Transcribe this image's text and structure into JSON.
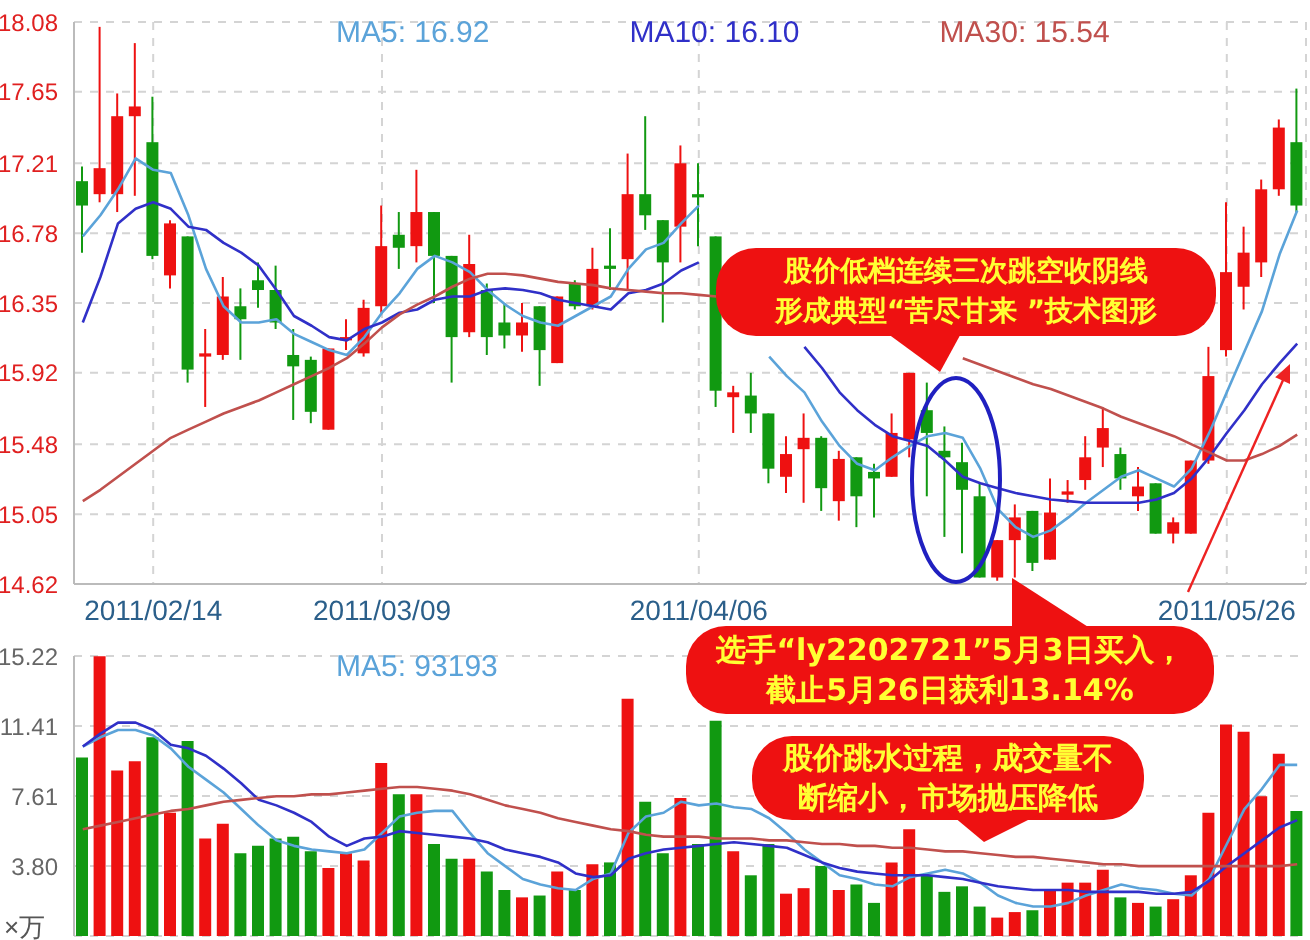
{
  "chart_data": [
    {
      "type": "candlestick",
      "categories": [
        null,
        null,
        null,
        null,
        "2011/02/14",
        null,
        null,
        null,
        null,
        null,
        null,
        null,
        null,
        null,
        null,
        null,
        null,
        "2011/03/09",
        null,
        null,
        null,
        null,
        null,
        null,
        null,
        null,
        null,
        null,
        null,
        null,
        null,
        null,
        null,
        null,
        null,
        "2011/04/06",
        null,
        null,
        null,
        null,
        null,
        null,
        null,
        null,
        null,
        null,
        null,
        null,
        null,
        null,
        null,
        null,
        null,
        null,
        null,
        null,
        null,
        null,
        null,
        null,
        null,
        null,
        null,
        null,
        null,
        "2011/05/26",
        null,
        null,
        null,
        null
      ],
      "ohlc": [
        [
          17.1,
          17.19,
          16.66,
          16.95
        ],
        [
          17.02,
          18.05,
          16.97,
          17.18
        ],
        [
          17.02,
          17.64,
          16.91,
          17.5
        ],
        [
          17.5,
          17.95,
          17.01,
          17.56
        ],
        [
          17.34,
          17.62,
          16.62,
          16.64
        ],
        [
          16.52,
          16.86,
          16.44,
          16.84
        ],
        [
          16.76,
          16.76,
          15.86,
          15.94
        ],
        [
          16.02,
          16.19,
          15.71,
          16.04
        ],
        [
          16.03,
          16.51,
          16.0,
          16.39
        ],
        [
          16.33,
          16.44,
          16.0,
          16.25
        ],
        [
          16.49,
          16.6,
          16.32,
          16.43
        ],
        [
          16.43,
          16.58,
          16.19,
          16.23
        ],
        [
          16.03,
          16.19,
          15.63,
          15.96
        ],
        [
          16.0,
          16.02,
          15.61,
          15.68
        ],
        [
          15.57,
          16.07,
          15.57,
          16.07
        ],
        [
          16.12,
          16.25,
          16.06,
          16.14
        ],
        [
          16.04,
          16.37,
          16.02,
          16.32
        ],
        [
          16.33,
          16.95,
          16.29,
          16.7
        ],
        [
          16.77,
          16.91,
          16.56,
          16.69
        ],
        [
          16.7,
          17.17,
          16.6,
          16.91
        ],
        [
          16.91,
          16.91,
          16.35,
          16.64
        ],
        [
          16.64,
          16.64,
          15.86,
          16.14
        ],
        [
          16.17,
          16.77,
          16.14,
          16.59
        ],
        [
          16.43,
          16.47,
          16.03,
          16.14
        ],
        [
          16.23,
          16.35,
          16.07,
          16.15
        ],
        [
          16.15,
          16.35,
          16.05,
          16.23
        ],
        [
          16.33,
          16.33,
          15.84,
          16.06
        ],
        [
          15.98,
          16.39,
          15.98,
          16.39
        ],
        [
          16.47,
          16.49,
          16.31,
          16.33
        ],
        [
          16.33,
          16.69,
          16.31,
          16.56
        ],
        [
          16.58,
          16.81,
          16.43,
          16.56
        ],
        [
          16.62,
          17.27,
          16.43,
          17.02
        ],
        [
          17.02,
          17.5,
          16.8,
          16.89
        ],
        [
          16.86,
          16.86,
          16.23,
          16.6
        ],
        [
          16.82,
          17.32,
          16.6,
          17.21
        ],
        [
          17.02,
          17.21,
          16.7,
          17.0
        ],
        [
          16.76,
          16.76,
          15.71,
          15.81
        ],
        [
          15.77,
          15.84,
          15.55,
          15.8
        ],
        [
          15.78,
          15.92,
          15.55,
          15.67
        ],
        [
          15.67,
          15.67,
          15.24,
          15.33
        ],
        [
          15.28,
          15.53,
          15.18,
          15.42
        ],
        [
          15.45,
          15.67,
          15.12,
          15.52
        ],
        [
          15.52,
          15.53,
          15.07,
          15.21
        ],
        [
          15.13,
          15.44,
          15.01,
          15.39
        ],
        [
          15.4,
          15.4,
          14.97,
          15.16
        ],
        [
          15.31,
          15.36,
          15.03,
          15.27
        ],
        [
          15.28,
          15.67,
          15.28,
          15.55
        ],
        [
          15.51,
          15.92,
          15.4,
          15.92
        ],
        [
          15.69,
          15.86,
          15.16,
          15.55
        ],
        [
          15.44,
          15.59,
          14.91,
          15.4
        ],
        [
          15.37,
          15.49,
          14.81,
          15.2
        ],
        [
          15.16,
          15.24,
          14.66,
          14.66
        ],
        [
          14.66,
          14.89,
          14.64,
          14.89
        ],
        [
          14.89,
          15.11,
          14.66,
          15.03
        ],
        [
          15.07,
          15.07,
          14.7,
          14.75
        ],
        [
          14.77,
          15.27,
          14.77,
          15.06
        ],
        [
          15.17,
          15.26,
          15.12,
          15.19
        ],
        [
          15.26,
          15.53,
          15.2,
          15.4
        ],
        [
          15.46,
          15.7,
          15.34,
          15.58
        ],
        [
          15.42,
          15.46,
          15.2,
          15.27
        ],
        [
          15.16,
          15.34,
          15.07,
          15.22
        ],
        [
          15.24,
          15.24,
          14.93,
          14.93
        ],
        [
          14.93,
          15.03,
          14.87,
          15.0
        ],
        [
          14.93,
          15.38,
          14.93,
          15.38
        ],
        [
          15.38,
          16.08,
          15.36,
          15.9
        ],
        [
          16.06,
          16.97,
          16.02,
          16.54
        ],
        [
          16.45,
          16.82,
          16.31,
          16.66
        ],
        [
          16.6,
          17.11,
          16.51,
          17.05
        ],
        [
          17.05,
          17.48,
          17.01,
          17.43
        ],
        [
          17.34,
          17.67,
          16.91,
          16.95
        ]
      ],
      "colors": [
        "#119911",
        "#ee1111",
        "#ee1111",
        "#ee1111",
        "#119911",
        "#ee1111",
        "#119911",
        "#ee1111",
        "#ee1111",
        "#119911",
        "#119911",
        "#119911",
        "#119911",
        "#119911",
        "#ee1111",
        "#ee1111",
        "#ee1111",
        "#ee1111",
        "#119911",
        "#ee1111",
        "#119911",
        "#119911",
        "#ee1111",
        "#119911",
        "#119911",
        "#ee1111",
        "#119911",
        "#ee1111",
        "#119911",
        "#ee1111",
        "#119911",
        "#ee1111",
        "#119911",
        "#119911",
        "#ee1111",
        "#119911",
        "#119911",
        "#ee1111",
        "#119911",
        "#119911",
        "#ee1111",
        "#ee1111",
        "#119911",
        "#ee1111",
        "#119911",
        "#119911",
        "#ee1111",
        "#ee1111",
        "#119911",
        "#119911",
        "#119911",
        "#119911",
        "#ee1111",
        "#ee1111",
        "#119911",
        "#ee1111",
        "#ee1111",
        "#ee1111",
        "#ee1111",
        "#119911",
        "#ee1111",
        "#119911",
        "#ee1111",
        "#ee1111",
        "#ee1111",
        "#ee1111",
        "#ee1111",
        "#ee1111",
        "#ee1111",
        "#119911"
      ],
      "series": [
        {
          "type": "line",
          "name": "MA5: 16.92",
          "color": "#5ba3d9",
          "values": [
            16.76,
            16.89,
            17.05,
            17.24,
            17.17,
            17.15,
            16.89,
            16.56,
            16.33,
            16.23,
            16.23,
            16.25,
            16.16,
            16.11,
            16.06,
            16.03,
            16.14,
            16.29,
            16.41,
            16.56,
            16.64,
            16.6,
            16.54,
            16.43,
            16.34,
            16.27,
            16.23,
            16.21,
            16.27,
            16.33,
            16.39,
            16.56,
            16.68,
            16.72,
            16.84,
            16.95,
            null,
            null,
            null,
            16.02,
            15.9,
            15.8,
            15.62,
            15.47,
            15.36,
            15.32,
            15.4,
            15.47,
            15.53,
            15.55,
            15.52,
            15.33,
            15.08,
            14.97,
            14.91,
            14.95,
            15.03,
            15.12,
            15.2,
            15.28,
            15.32,
            15.27,
            15.22,
            15.33,
            15.55,
            15.8,
            16.05,
            16.3,
            16.65,
            16.92
          ]
        },
        {
          "type": "line",
          "name": "MA10: 16.10",
          "color": "#3030c8",
          "values": [
            16.23,
            16.51,
            16.84,
            16.93,
            16.97,
            16.93,
            16.82,
            16.8,
            16.72,
            16.66,
            16.58,
            16.43,
            16.27,
            16.21,
            16.14,
            16.12,
            16.19,
            16.23,
            16.29,
            16.31,
            16.37,
            16.39,
            16.39,
            16.43,
            16.44,
            16.43,
            16.41,
            16.37,
            16.35,
            16.33,
            16.31,
            16.41,
            16.43,
            16.47,
            16.55,
            16.6,
            null,
            null,
            null,
            null,
            null,
            16.08,
            15.95,
            15.8,
            15.69,
            15.6,
            15.53,
            15.5,
            15.47,
            15.38,
            15.28,
            15.24,
            15.21,
            15.18,
            15.16,
            15.14,
            15.13,
            15.12,
            15.12,
            15.12,
            15.12,
            15.14,
            15.18,
            15.27,
            15.4,
            15.55,
            15.69,
            15.85,
            15.98,
            16.1
          ]
        },
        {
          "type": "line",
          "name": "MA30: 15.54",
          "color": "#c0504d",
          "values": [
            15.13,
            15.2,
            15.28,
            15.36,
            15.44,
            15.52,
            15.57,
            15.62,
            15.67,
            15.71,
            15.75,
            15.8,
            15.85,
            15.9,
            15.95,
            16.01,
            16.1,
            16.2,
            16.28,
            16.34,
            16.39,
            16.45,
            16.5,
            16.53,
            16.53,
            16.52,
            16.5,
            16.48,
            16.47,
            16.46,
            16.44,
            16.43,
            16.42,
            16.41,
            16.41,
            16.4,
            16.39,
            null,
            null,
            null,
            null,
            null,
            null,
            null,
            null,
            null,
            null,
            null,
            null,
            null,
            16.01,
            15.97,
            15.93,
            15.89,
            15.85,
            15.82,
            15.78,
            15.74,
            15.7,
            15.65,
            15.61,
            15.57,
            15.53,
            15.48,
            15.43,
            15.38,
            15.38,
            15.42,
            15.47,
            15.54
          ]
        }
      ],
      "ylim": [
        14.62,
        18.08
      ],
      "yticks": [
        14.62,
        15.05,
        15.48,
        15.92,
        16.35,
        16.78,
        17.21,
        17.65,
        18.08
      ],
      "grid": true,
      "legend": "top",
      "annotations": [
        "股价低档连续三次跳空收阴线形成典型“苦尽甘来 ”技术图形"
      ]
    },
    {
      "type": "bar",
      "categories": [
        null,
        null,
        null,
        null,
        null,
        null,
        null,
        null,
        null,
        null,
        null,
        null,
        null,
        null,
        null,
        null,
        null,
        null,
        null,
        null,
        null,
        null,
        null,
        null,
        null,
        null,
        null,
        null,
        null,
        null,
        null,
        null,
        null,
        null,
        null,
        null,
        null,
        null,
        null,
        null,
        null,
        null,
        null,
        null,
        null,
        null,
        null,
        null,
        null,
        null,
        null,
        null,
        null,
        null,
        null,
        null,
        null,
        null,
        null,
        null,
        null,
        null,
        null,
        null,
        null,
        null,
        null,
        null,
        null,
        null
      ],
      "series": [
        {
          "type": "bar",
          "values": [
            9.7,
            15.2,
            9.0,
            9.5,
            10.8,
            6.7,
            10.6,
            5.3,
            6.1,
            4.5,
            4.9,
            5.3,
            5.4,
            4.6,
            3.7,
            4.5,
            4.1,
            9.4,
            7.7,
            7.7,
            5.0,
            4.2,
            4.2,
            3.5,
            2.5,
            2.1,
            2.2,
            3.5,
            2.5,
            3.9,
            4.0,
            12.9,
            7.3,
            4.5,
            7.5,
            5.0,
            11.7,
            4.6,
            3.3,
            5.0,
            2.3,
            2.6,
            3.8,
            2.5,
            2.8,
            1.8,
            4.0,
            5.8,
            3.3,
            2.4,
            2.7,
            1.6,
            1.0,
            1.3,
            1.4,
            2.5,
            2.9,
            2.9,
            3.6,
            2.1,
            1.8,
            1.6,
            2.0,
            3.3,
            6.7,
            11.5,
            11.1,
            7.6,
            9.9,
            6.8
          ],
          "colors": [
            "#119911",
            "#ee1111",
            "#ee1111",
            "#ee1111",
            "#119911",
            "#ee1111",
            "#119911",
            "#ee1111",
            "#ee1111",
            "#119911",
            "#119911",
            "#119911",
            "#119911",
            "#119911",
            "#ee1111",
            "#ee1111",
            "#ee1111",
            "#ee1111",
            "#119911",
            "#ee1111",
            "#119911",
            "#119911",
            "#ee1111",
            "#119911",
            "#119911",
            "#ee1111",
            "#119911",
            "#ee1111",
            "#119911",
            "#ee1111",
            "#119911",
            "#ee1111",
            "#119911",
            "#119911",
            "#ee1111",
            "#119911",
            "#119911",
            "#ee1111",
            "#119911",
            "#119911",
            "#ee1111",
            "#ee1111",
            "#119911",
            "#ee1111",
            "#119911",
            "#119911",
            "#ee1111",
            "#ee1111",
            "#119911",
            "#119911",
            "#119911",
            "#119911",
            "#ee1111",
            "#ee1111",
            "#119911",
            "#ee1111",
            "#ee1111",
            "#ee1111",
            "#ee1111",
            "#119911",
            "#ee1111",
            "#119911",
            "#ee1111",
            "#ee1111",
            "#ee1111",
            "#ee1111",
            "#ee1111",
            "#ee1111",
            "#ee1111",
            "#119911"
          ]
        },
        {
          "type": "line",
          "name": "MA5: 93193",
          "color": "#5ba3d9",
          "values": [
            10.3,
            10.8,
            11.2,
            11.2,
            10.9,
            10.2,
            9.2,
            8.5,
            7.8,
            6.9,
            6.0,
            5.2,
            4.9,
            4.7,
            4.6,
            4.5,
            4.7,
            5.6,
            6.5,
            6.7,
            6.8,
            6.8,
            5.6,
            4.5,
            3.8,
            3.1,
            2.8,
            2.6,
            2.5,
            3.1,
            3.4,
            5.6,
            6.5,
            6.7,
            7.3,
            7.1,
            7.2,
            7.0,
            6.9,
            6.4,
            5.6,
            4.7,
            4.0,
            3.3,
            3.1,
            2.8,
            2.7,
            3.2,
            3.4,
            3.6,
            3.4,
            2.9,
            2.2,
            1.8,
            1.6,
            1.6,
            1.8,
            2.2,
            2.5,
            2.8,
            2.6,
            2.5,
            2.3,
            2.2,
            3.1,
            5.0,
            6.9,
            8.0,
            9.3,
            9.3
          ]
        },
        {
          "type": "line",
          "color": "#3030c8",
          "values": [
            10.3,
            11.0,
            11.6,
            11.6,
            11.2,
            10.4,
            10.2,
            9.8,
            9.1,
            8.3,
            7.4,
            7.1,
            6.7,
            6.2,
            5.4,
            4.9,
            5.3,
            5.4,
            5.7,
            5.6,
            5.5,
            5.4,
            5.3,
            5.1,
            4.7,
            4.5,
            4.3,
            4.0,
            3.4,
            3.2,
            3.3,
            4.2,
            4.5,
            4.7,
            4.8,
            4.9,
            5.0,
            5.1,
            5.0,
            4.9,
            4.8,
            4.4,
            4.0,
            3.7,
            3.5,
            3.4,
            3.3,
            3.3,
            3.3,
            3.2,
            3.1,
            2.9,
            2.7,
            2.6,
            2.5,
            2.5,
            2.5,
            2.4,
            2.4,
            2.4,
            2.4,
            2.3,
            2.3,
            2.4,
            3.0,
            3.8,
            4.5,
            5.2,
            5.9,
            6.3
          ]
        },
        {
          "type": "line",
          "color": "#c0504d",
          "values": [
            5.8,
            6.0,
            6.2,
            6.4,
            6.6,
            6.8,
            6.9,
            7.1,
            7.3,
            7.4,
            7.5,
            7.6,
            7.6,
            7.7,
            7.7,
            7.8,
            7.9,
            8.0,
            8.1,
            8.1,
            8.0,
            7.9,
            7.7,
            7.4,
            7.1,
            6.9,
            6.7,
            6.4,
            6.2,
            6.0,
            5.8,
            5.7,
            5.5,
            5.4,
            5.4,
            5.4,
            5.3,
            5.3,
            5.3,
            5.2,
            5.2,
            5.1,
            5.0,
            5.0,
            4.9,
            4.9,
            4.8,
            4.8,
            4.7,
            4.6,
            4.6,
            4.5,
            4.4,
            4.3,
            4.3,
            4.2,
            4.1,
            4.0,
            3.9,
            3.9,
            3.8,
            3.8,
            3.8,
            3.8,
            3.8,
            3.8,
            3.8,
            3.8,
            3.8,
            3.9
          ]
        }
      ],
      "ylim": [
        0,
        15.22
      ],
      "yticks": [
        {
          "value": 3.8,
          "label": "3.80"
        },
        7.61,
        11.41,
        15.22
      ],
      "ylabel": "×万",
      "grid": "y",
      "legend": "top",
      "tick_labels": "y",
      "annotations": [
        "选手“ly2202721”5月3日买入，截止5月26日获利13.14%",
        "股价跳水过程，成交量不断缩小，市场抛压降低"
      ]
    }
  ]
}
